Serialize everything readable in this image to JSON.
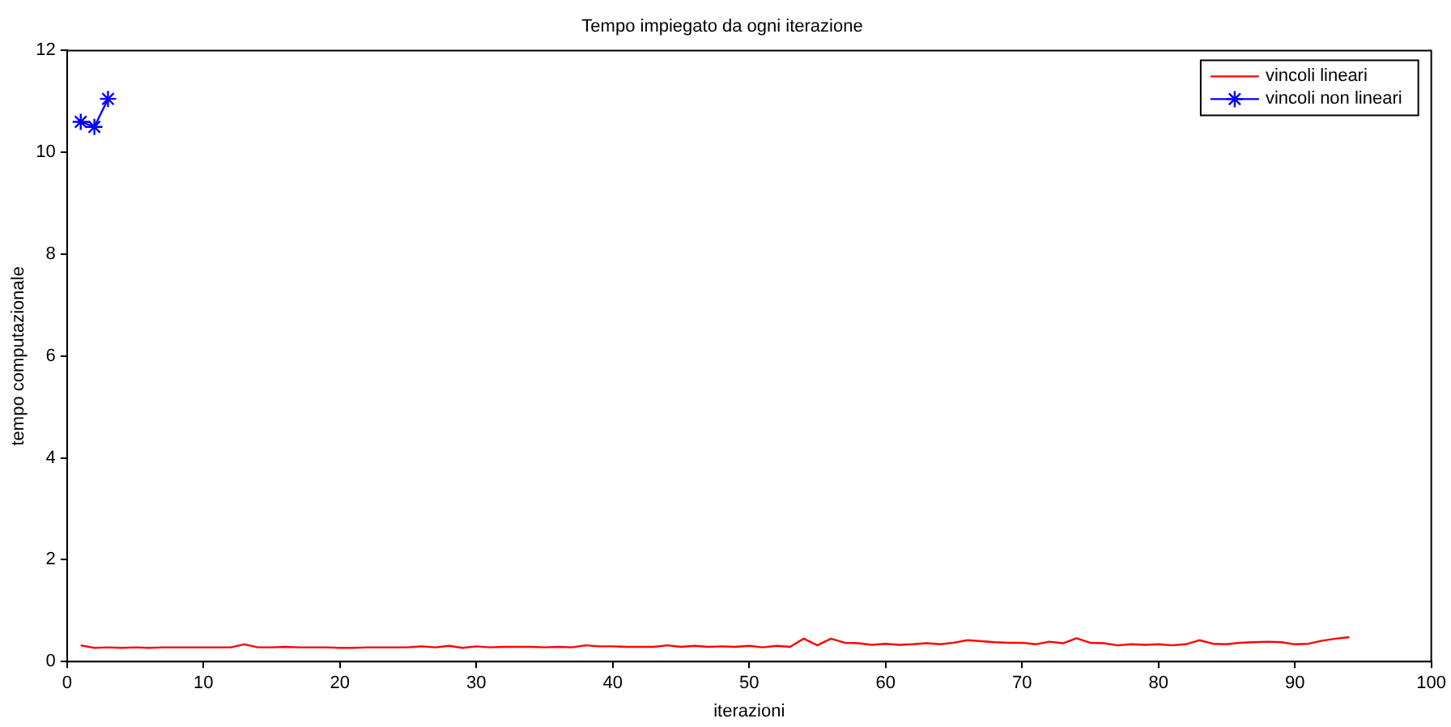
{
  "chart_data": {
    "type": "line",
    "title": "Tempo impiegato da ogni iterazione",
    "xlabel": "iterazioni",
    "ylabel": "tempo computazionale",
    "xlim": [
      0,
      100
    ],
    "xticks": [
      0,
      10,
      20,
      30,
      40,
      50,
      60,
      70,
      80,
      90,
      100
    ],
    "ylim": [
      0,
      12
    ],
    "yticks": [
      0,
      2,
      4,
      6,
      8,
      10,
      12
    ],
    "grid": false,
    "legend": "top right",
    "line_style": "solid",
    "series": [
      {
        "name": "vincoli lineari",
        "color": "#ff0000",
        "marker": "none",
        "x": [
          1,
          2,
          3,
          4,
          5,
          6,
          7,
          8,
          9,
          10,
          11,
          12,
          13,
          14,
          15,
          16,
          17,
          18,
          19,
          20,
          21,
          22,
          23,
          24,
          25,
          26,
          27,
          28,
          29,
          30,
          31,
          32,
          33,
          34,
          35,
          36,
          37,
          38,
          39,
          40,
          41,
          42,
          43,
          44,
          45,
          46,
          47,
          48,
          49,
          50,
          51,
          52,
          53,
          54,
          55,
          56,
          57,
          58,
          59,
          60,
          61,
          62,
          63,
          64,
          65,
          66,
          67,
          68,
          69,
          70,
          71,
          72,
          73,
          74,
          75,
          76,
          77,
          78,
          79,
          80,
          81,
          82,
          83,
          84,
          85,
          86,
          87,
          88,
          89,
          90,
          91,
          92,
          93,
          94
        ],
        "values": [
          0.32,
          0.27,
          0.28,
          0.27,
          0.28,
          0.27,
          0.28,
          0.28,
          0.28,
          0.28,
          0.28,
          0.28,
          0.34,
          0.28,
          0.28,
          0.29,
          0.28,
          0.28,
          0.28,
          0.27,
          0.27,
          0.28,
          0.28,
          0.28,
          0.28,
          0.3,
          0.28,
          0.31,
          0.27,
          0.3,
          0.28,
          0.29,
          0.29,
          0.29,
          0.28,
          0.29,
          0.28,
          0.32,
          0.3,
          0.3,
          0.29,
          0.29,
          0.29,
          0.32,
          0.29,
          0.31,
          0.29,
          0.3,
          0.29,
          0.31,
          0.28,
          0.31,
          0.29,
          0.45,
          0.32,
          0.45,
          0.37,
          0.36,
          0.33,
          0.35,
          0.33,
          0.34,
          0.36,
          0.34,
          0.37,
          0.42,
          0.4,
          0.38,
          0.37,
          0.37,
          0.34,
          0.39,
          0.36,
          0.46,
          0.37,
          0.36,
          0.32,
          0.34,
          0.33,
          0.34,
          0.32,
          0.34,
          0.42,
          0.35,
          0.34,
          0.37,
          0.38,
          0.39,
          0.38,
          0.34,
          0.35,
          0.41,
          0.45,
          0.48
        ]
      },
      {
        "name": "vincoli non lineari",
        "color": "#0000ff",
        "marker": "cross",
        "x": [
          1,
          2,
          3
        ],
        "values": [
          10.6,
          10.5,
          11.05
        ]
      }
    ]
  }
}
